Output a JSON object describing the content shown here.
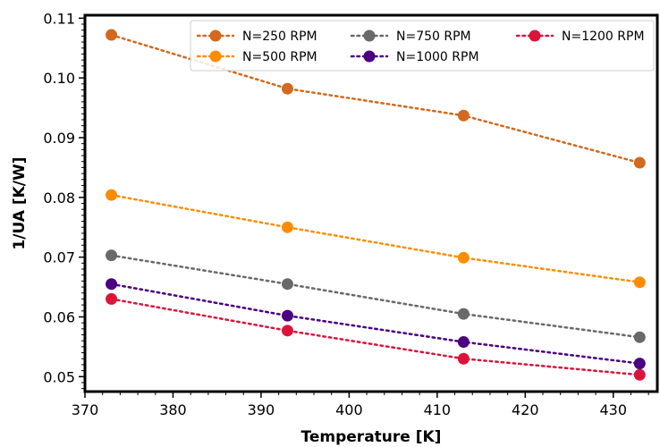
{
  "chart_data": {
    "type": "line",
    "xlabel": "Temperature [K]",
    "ylabel": "1/UA [K/W]",
    "xlim": [
      370,
      435
    ],
    "ylim": [
      0.0475,
      0.1105
    ],
    "x_ticks": [
      370,
      380,
      390,
      400,
      410,
      420,
      430
    ],
    "y_ticks": [
      0.05,
      0.06,
      0.07,
      0.08,
      0.09,
      0.1,
      0.11
    ],
    "y_tick_labels": [
      "0.05",
      "0.06",
      "0.07",
      "0.08",
      "0.09",
      "0.10",
      "0.11"
    ],
    "x": [
      373,
      393,
      413,
      433
    ],
    "line_style": "dotted",
    "marker": "circle",
    "grid": false,
    "legend_position": "top-right",
    "legend_columns": 3,
    "series": [
      {
        "name": "N=250 RPM",
        "color": "#d2691e",
        "values": [
          0.1072,
          0.0982,
          0.0937,
          0.0858
        ]
      },
      {
        "name": "N=500 RPM",
        "color": "#ff8c00",
        "values": [
          0.0804,
          0.075,
          0.0699,
          0.0658
        ]
      },
      {
        "name": "N=750 RPM",
        "color": "#696969",
        "values": [
          0.0703,
          0.0655,
          0.0605,
          0.0566
        ]
      },
      {
        "name": "N=1000 RPM",
        "color": "#4b0082",
        "values": [
          0.0655,
          0.0602,
          0.0558,
          0.0522
        ]
      },
      {
        "name": "N=1200 RPM",
        "color": "#dc143c",
        "values": [
          0.063,
          0.0577,
          0.053,
          0.0503
        ]
      }
    ]
  }
}
